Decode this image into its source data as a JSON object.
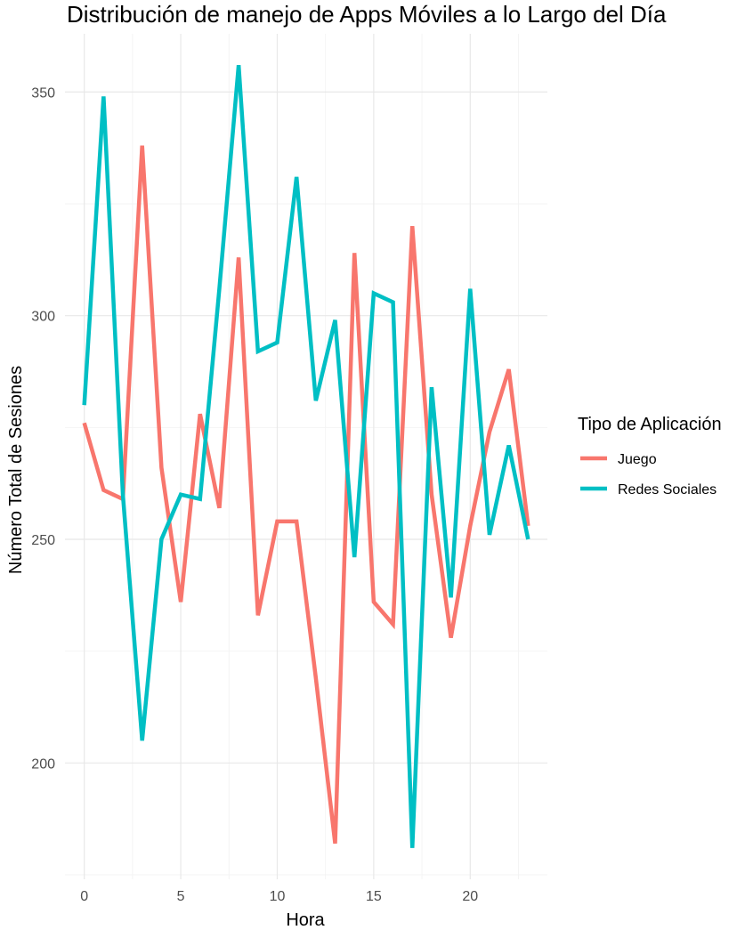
{
  "chart_data": {
    "type": "line",
    "title": "Distribución de manejo de Apps Móviles a lo Largo del Día",
    "xlabel": "Hora",
    "ylabel": "Número Total de Sesiones",
    "xlim": [
      -1,
      24
    ],
    "ylim": [
      174,
      363
    ],
    "x_ticks": [
      0,
      5,
      10,
      15,
      20
    ],
    "y_ticks": [
      200,
      250,
      300,
      350
    ],
    "grid": true,
    "legend": {
      "title": "Tipo de Aplicación",
      "position": "right"
    },
    "x": [
      0,
      1,
      2,
      3,
      4,
      5,
      6,
      7,
      8,
      9,
      10,
      11,
      12,
      13,
      14,
      15,
      16,
      17,
      18,
      19,
      20,
      21,
      22,
      23
    ],
    "series": [
      {
        "name": "Juego",
        "color": "#F8766D",
        "values": [
          276,
          261,
          259,
          338,
          266,
          236,
          278,
          257,
          313,
          233,
          254,
          254,
          219,
          182,
          314,
          236,
          231,
          320,
          260,
          228,
          253,
          274,
          288,
          253
        ]
      },
      {
        "name": "Redes Sociales",
        "color": "#00BFC4",
        "values": [
          280,
          349,
          260,
          205,
          250,
          260,
          259,
          306,
          356,
          292,
          294,
          331,
          281,
          299,
          246,
          305,
          303,
          181,
          284,
          237,
          306,
          251,
          271,
          250
        ]
      }
    ]
  }
}
